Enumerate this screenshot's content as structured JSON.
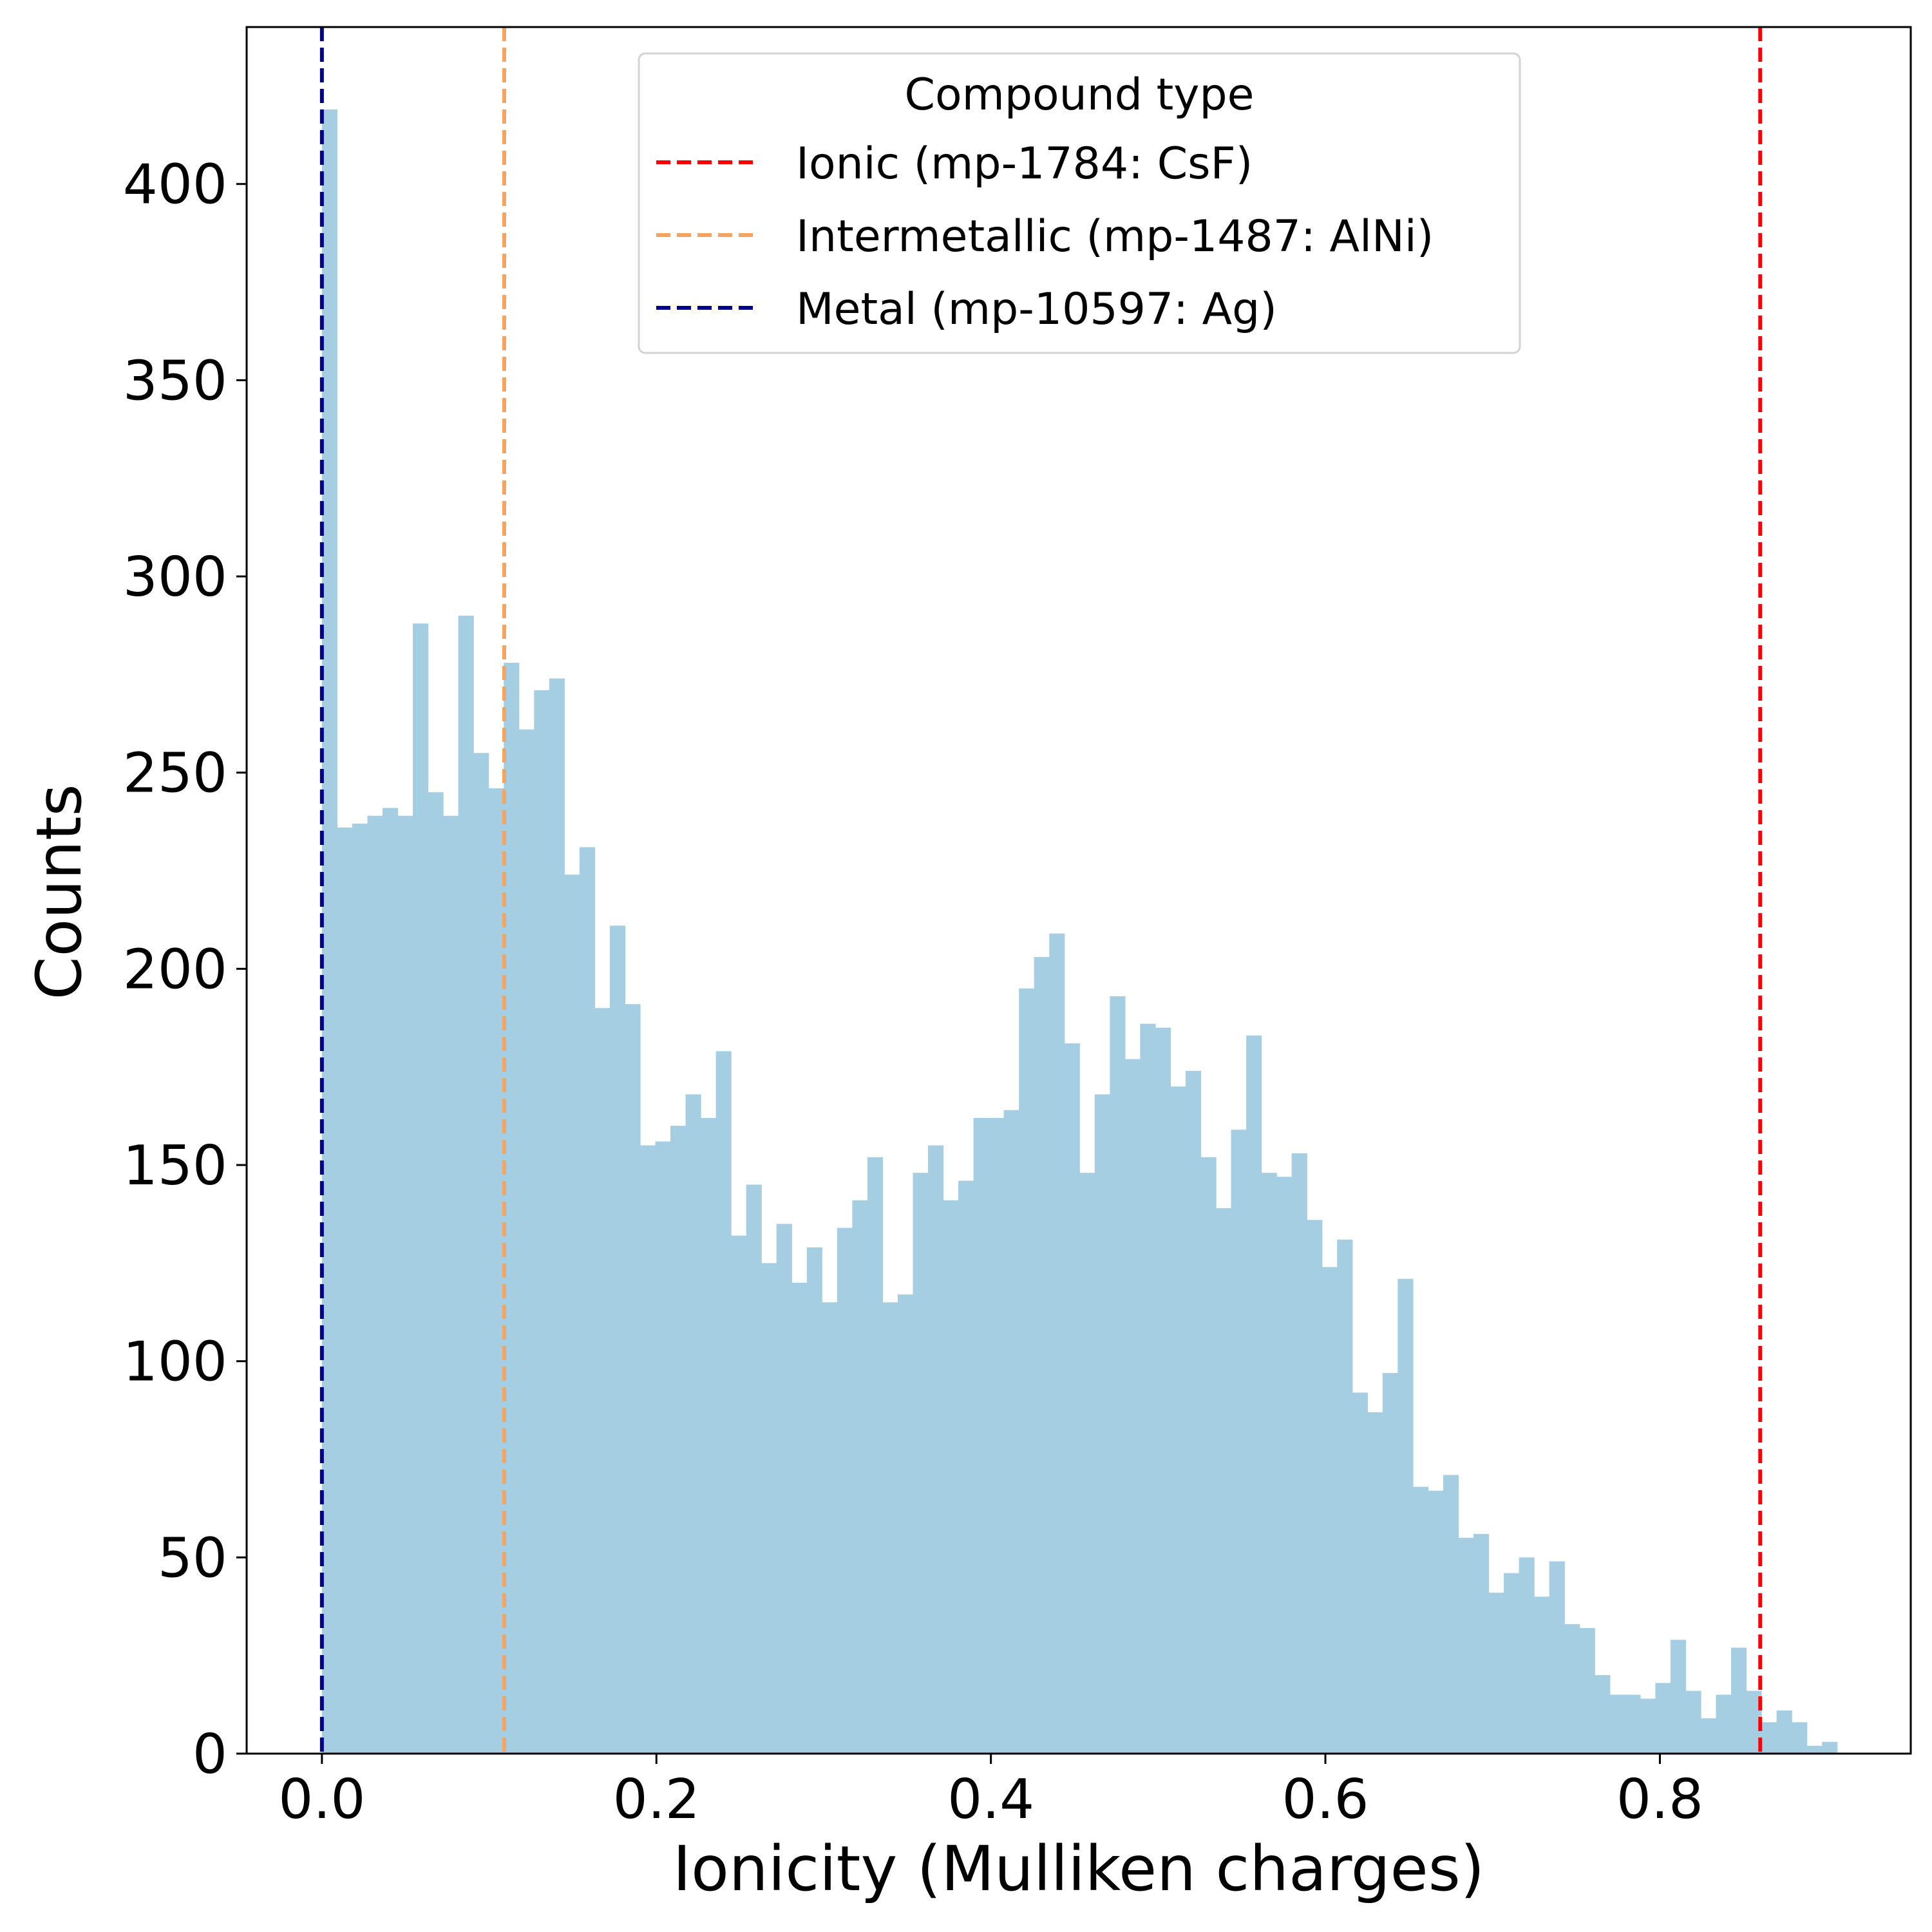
{
  "chart_data": {
    "type": "bar",
    "subtype": "histogram",
    "title": "",
    "xlabel": "Ionicity (Mulliken charges)",
    "ylabel": "Counts",
    "xlim": [
      -0.045,
      0.95
    ],
    "ylim": [
      0,
      440
    ],
    "xticks": [
      0.0,
      0.2,
      0.4,
      0.6,
      0.8
    ],
    "xtick_labels": [
      "0.0",
      "0.2",
      "0.4",
      "0.6",
      "0.8"
    ],
    "yticks": [
      0,
      50,
      100,
      150,
      200,
      250,
      300,
      350,
      400
    ],
    "ytick_labels": [
      "0",
      "50",
      "100",
      "150",
      "200",
      "250",
      "300",
      "350",
      "400"
    ],
    "grid": false,
    "bin_range": [
      0.0,
      0.906
    ],
    "bar_color": "#a6cee3",
    "counts": [
      419,
      236,
      237,
      239,
      241,
      239,
      288,
      245,
      239,
      290,
      255,
      246,
      278,
      261,
      271,
      274,
      224,
      231,
      190,
      211,
      191,
      155,
      156,
      160,
      168,
      162,
      179,
      132,
      145,
      125,
      135,
      120,
      129,
      115,
      134,
      141,
      152,
      115,
      117,
      148,
      155,
      141,
      146,
      162,
      162,
      164,
      195,
      203,
      209,
      181,
      148,
      168,
      193,
      177,
      186,
      185,
      170,
      174,
      152,
      139,
      159,
      183,
      148,
      147,
      153,
      136,
      124,
      131,
      92,
      87,
      97,
      121,
      68,
      67,
      71,
      55,
      56,
      41,
      46,
      50,
      40,
      49,
      33,
      32,
      20,
      15,
      15,
      14,
      18,
      29,
      16,
      9,
      15,
      27,
      16,
      8,
      11,
      8,
      2,
      3
    ],
    "vlines": [
      {
        "name": "Ionic (mp-1784: CsF)",
        "x": 0.86,
        "color": "#ff0000"
      },
      {
        "name": "Intermetallic (mp-1487: AlNi)",
        "x": 0.109,
        "color": "#f4a460"
      },
      {
        "name": "Metal (mp-10597: Ag)",
        "x": 0.0,
        "color": "#00008b"
      }
    ],
    "legend": {
      "title": "Compound type",
      "placement": "upper-center"
    }
  }
}
